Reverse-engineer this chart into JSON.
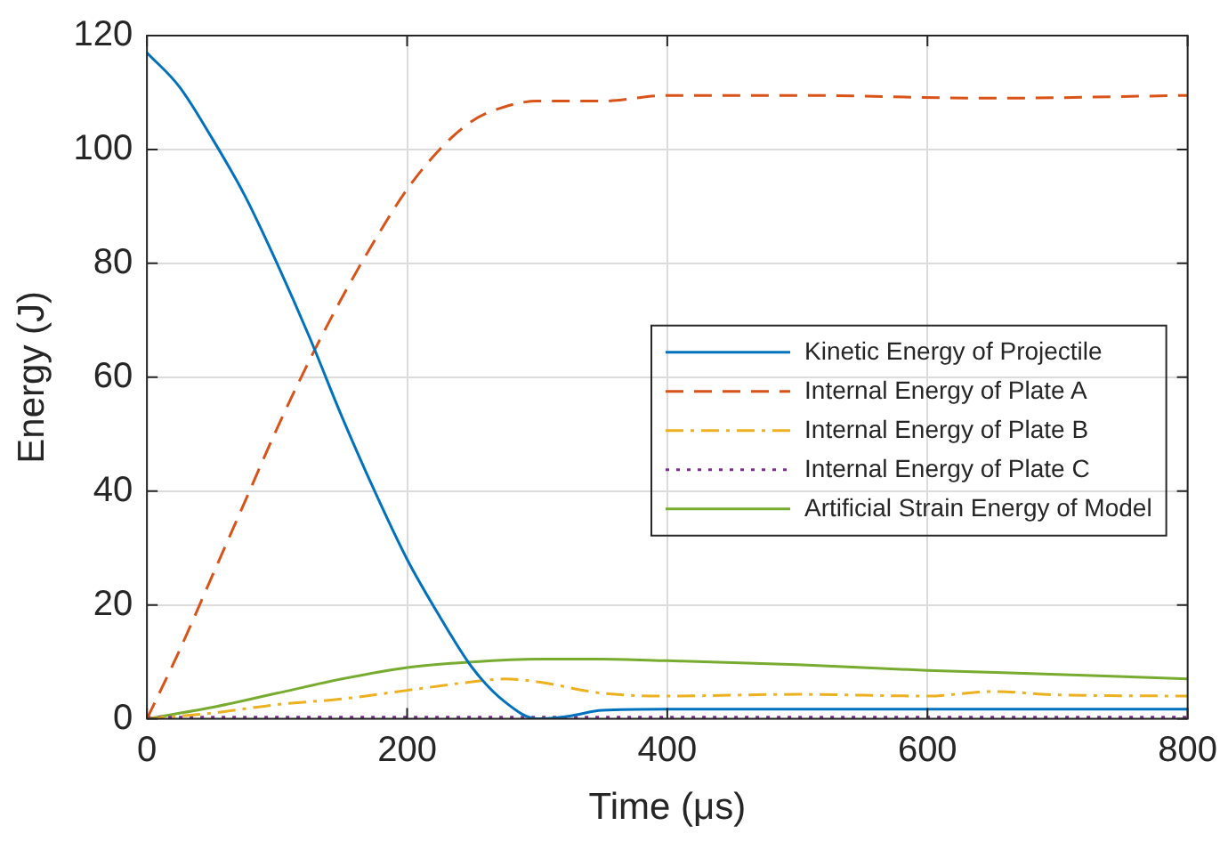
{
  "chart_data": {
    "type": "line",
    "xlabel": "Time (μs)",
    "ylabel": "Energy (J)",
    "xlim": [
      0,
      800
    ],
    "ylim": [
      0,
      120
    ],
    "xticks": [
      0,
      200,
      400,
      600,
      800
    ],
    "yticks": [
      0,
      20,
      40,
      60,
      80,
      100,
      120
    ],
    "grid": true,
    "legend": "right",
    "marker": "none",
    "series": [
      {
        "name": "Kinetic Energy of Projectile",
        "color": "#0072bd",
        "line_style": "solid",
        "x": [
          0,
          25,
          50,
          75,
          100,
          125,
          150,
          175,
          200,
          225,
          250,
          275,
          300,
          325,
          350,
          400,
          500,
          600,
          700,
          800
        ],
        "values": [
          117,
          111,
          102,
          92,
          80,
          67,
          53,
          40,
          28,
          18,
          9,
          3,
          0,
          0.5,
          1.5,
          1.7,
          1.7,
          1.7,
          1.7,
          1.7
        ]
      },
      {
        "name": "Internal Energy of Plate A",
        "color": "#d95319",
        "line_style": "dashed",
        "x": [
          0,
          25,
          50,
          75,
          100,
          125,
          150,
          175,
          200,
          225,
          250,
          275,
          300,
          350,
          400,
          500,
          650,
          800
        ],
        "values": [
          0,
          12,
          25,
          38,
          51,
          63,
          74,
          84,
          93,
          100,
          105,
          107.5,
          108.5,
          108.5,
          109.5,
          109.5,
          109,
          109.5
        ]
      },
      {
        "name": "Internal Energy of Plate B",
        "color": "#edb120",
        "line_style": "dashdot",
        "x": [
          0,
          50,
          100,
          150,
          200,
          250,
          275,
          300,
          350,
          400,
          500,
          600,
          650,
          700,
          800
        ],
        "values": [
          0,
          1,
          2.5,
          3.5,
          5,
          6.5,
          7,
          6.5,
          4.5,
          4,
          4.3,
          4,
          4.8,
          4.2,
          4
        ]
      },
      {
        "name": "Internal Energy of Plate C",
        "color": "#7e2f8e",
        "line_style": "dotted",
        "x": [
          0,
          200,
          400,
          600,
          800
        ],
        "values": [
          0.3,
          0.3,
          0.3,
          0.3,
          0.3
        ]
      },
      {
        "name": "Artificial Strain Energy of Model",
        "color": "#77ac30",
        "line_style": "solid",
        "x": [
          0,
          50,
          100,
          150,
          200,
          250,
          300,
          350,
          400,
          500,
          600,
          700,
          800
        ],
        "values": [
          0,
          2,
          4.5,
          7,
          9,
          10,
          10.5,
          10.5,
          10.2,
          9.5,
          8.5,
          7.8,
          7
        ]
      }
    ]
  }
}
